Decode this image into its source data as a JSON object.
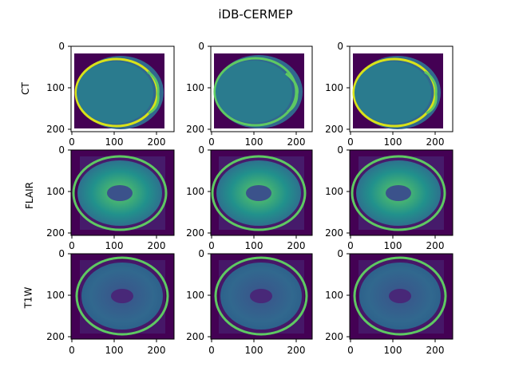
{
  "figure": {
    "title": "iDB-CERMEP",
    "rows": [
      {
        "label": "CT"
      },
      {
        "label": "FLAIR"
      },
      {
        "label": "T1W"
      }
    ]
  },
  "axes": {
    "CT": {
      "xticks": [
        "0",
        "100",
        "200"
      ],
      "yticks": [
        "0",
        "100",
        "200"
      ]
    },
    "MR": {
      "xticks": [
        "0",
        "100",
        "200"
      ],
      "yticks": [
        "0",
        "100",
        "200"
      ]
    }
  },
  "colors": {
    "background_dark": "#440154",
    "tissue": "#31688e",
    "mid": "#21918c",
    "bright": "#5ec962",
    "bone": "#d8e219"
  }
}
